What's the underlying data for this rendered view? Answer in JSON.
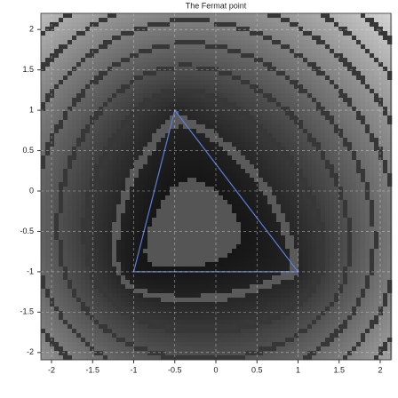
{
  "chart_data": {
    "type": "contour",
    "title": "The Fermat point",
    "x": [
      -1,
      1,
      -0.5
    ],
    "y": [
      -1,
      -1,
      1
    ],
    "color": "#5b7fdc",
    "xlim": [
      -2.13,
      2.13
    ],
    "ylim": [
      -2.09,
      2.2
    ],
    "xticks": [
      -2,
      -1.5,
      -1,
      -0.5,
      0,
      0.5,
      1,
      1.5,
      2
    ],
    "yticks": [
      -2,
      -1.5,
      -1,
      -0.5,
      0,
      0.5,
      1,
      1.5,
      2
    ],
    "grid": true
  }
}
